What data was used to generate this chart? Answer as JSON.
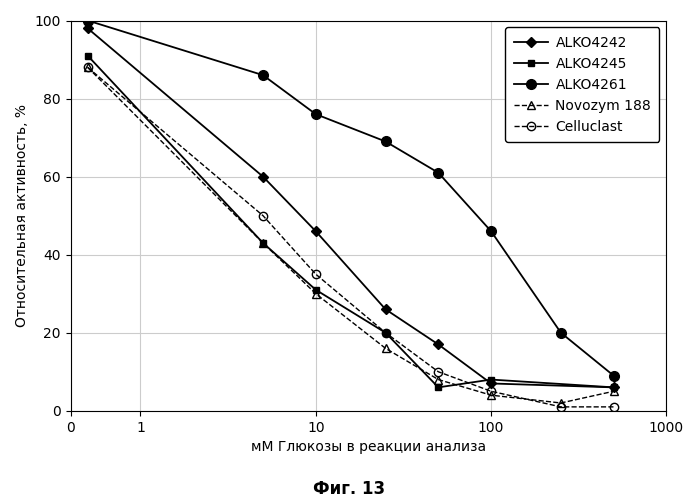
{
  "xlabel": "мМ Глюкозы в реакции анализа",
  "ylabel": "Относительная активность, %",
  "caption": "Фиг. 13",
  "xlim": [
    0.4,
    1000
  ],
  "ylim": [
    0,
    100
  ],
  "yticks": [
    0,
    20,
    40,
    60,
    80,
    100
  ],
  "xtick_vals": [
    0.4,
    1,
    10,
    100,
    1000
  ],
  "xtick_labels": [
    "0",
    "1",
    "10",
    "100",
    "1000"
  ],
  "series": [
    {
      "label": "ALKO4242",
      "color": "#000000",
      "marker": "D",
      "markersize": 5,
      "linestyle": "-",
      "linewidth": 1.3,
      "fillstyle": "full",
      "x": [
        0.5,
        5,
        10,
        25,
        50,
        100,
        500
      ],
      "y": [
        98,
        60,
        46,
        26,
        17,
        7,
        6
      ]
    },
    {
      "label": "ALKO4245",
      "color": "#000000",
      "marker": "s",
      "markersize": 5,
      "linestyle": "-",
      "linewidth": 1.3,
      "fillstyle": "full",
      "x": [
        0.5,
        5,
        10,
        25,
        50,
        100,
        500
      ],
      "y": [
        91,
        43,
        31,
        20,
        6,
        8,
        6
      ]
    },
    {
      "label": "ALKO4261",
      "color": "#000000",
      "marker": "o",
      "markersize": 7,
      "linestyle": "-",
      "linewidth": 1.3,
      "fillstyle": "full",
      "x": [
        0.5,
        5,
        10,
        25,
        50,
        100,
        250,
        500
      ],
      "y": [
        100,
        86,
        76,
        69,
        61,
        46,
        20,
        9
      ]
    },
    {
      "label": "Novozym 188",
      "color": "#000000",
      "marker": "^",
      "markersize": 6,
      "linestyle": "--",
      "linewidth": 1.0,
      "fillstyle": "none",
      "x": [
        0.5,
        5,
        10,
        25,
        50,
        100,
        250,
        500
      ],
      "y": [
        88,
        43,
        30,
        16,
        8,
        4,
        2,
        5
      ]
    },
    {
      "label": "Celluclast",
      "color": "#000000",
      "marker": "o",
      "markersize": 6,
      "linestyle": "--",
      "linewidth": 1.0,
      "fillstyle": "none",
      "x": [
        0.5,
        5,
        10,
        25,
        50,
        100,
        250,
        500
      ],
      "y": [
        88,
        50,
        35,
        20,
        10,
        5,
        1,
        1
      ]
    }
  ],
  "background_color": "#ffffff",
  "grid_color": "#cccccc",
  "legend_fontsize": 10,
  "axis_fontsize": 10,
  "tick_fontsize": 10,
  "caption_fontsize": 12
}
